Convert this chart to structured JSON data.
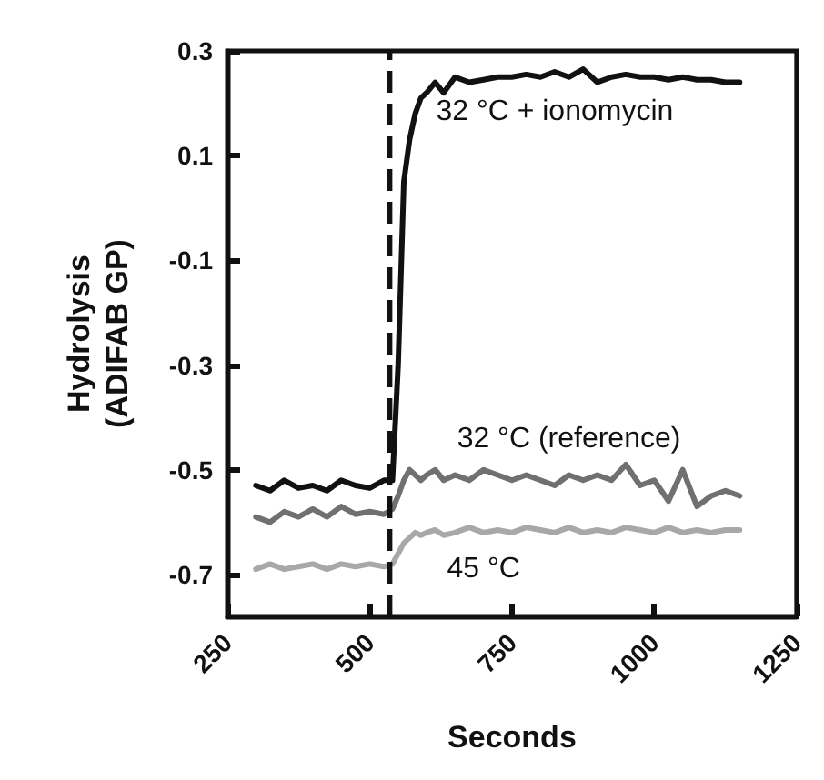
{
  "chart_data": {
    "type": "line",
    "xlabel": "Seconds",
    "ylabel": "Hydrolysis\n(ADIFAB GP)",
    "xlim": [
      250,
      1250
    ],
    "xticks": [
      250,
      500,
      750,
      1000,
      1250
    ],
    "ylim": [
      -0.78,
      0.3
    ],
    "yticks": [
      0.3,
      0.1,
      -0.1,
      -0.3,
      -0.5,
      -0.7
    ],
    "grid": false,
    "marker": "none",
    "line_style": "solid",
    "x": [
      300,
      325,
      350,
      375,
      400,
      425,
      450,
      475,
      500,
      525,
      540,
      550,
      560,
      570,
      580,
      590,
      600,
      615,
      630,
      650,
      675,
      700,
      725,
      750,
      775,
      800,
      825,
      850,
      875,
      900,
      925,
      950,
      975,
      1000,
      1025,
      1050,
      1075,
      1100,
      1125,
      1150
    ],
    "series": [
      {
        "name": "32 °C + ionomycin",
        "color": "#111111",
        "values": [
          -0.53,
          -0.54,
          -0.52,
          -0.535,
          -0.53,
          -0.54,
          -0.52,
          -0.53,
          -0.535,
          -0.52,
          -0.52,
          -0.3,
          0.05,
          0.13,
          0.18,
          0.21,
          0.22,
          0.24,
          0.22,
          0.25,
          0.24,
          0.245,
          0.25,
          0.25,
          0.255,
          0.25,
          0.26,
          0.25,
          0.265,
          0.24,
          0.25,
          0.255,
          0.25,
          0.25,
          0.245,
          0.25,
          0.245,
          0.245,
          0.24,
          0.24
        ]
      },
      {
        "name": "32 °C (reference)",
        "color": "#707070",
        "values": [
          -0.59,
          -0.6,
          -0.58,
          -0.59,
          -0.575,
          -0.59,
          -0.57,
          -0.585,
          -0.58,
          -0.585,
          -0.575,
          -0.55,
          -0.52,
          -0.5,
          -0.51,
          -0.52,
          -0.51,
          -0.5,
          -0.52,
          -0.51,
          -0.52,
          -0.5,
          -0.51,
          -0.52,
          -0.51,
          -0.52,
          -0.53,
          -0.51,
          -0.52,
          -0.51,
          -0.52,
          -0.49,
          -0.53,
          -0.52,
          -0.56,
          -0.5,
          -0.57,
          -0.55,
          -0.54,
          -0.55
        ]
      },
      {
        "name": "45 °C",
        "color": "#a8a8a8",
        "values": [
          -0.69,
          -0.68,
          -0.69,
          -0.685,
          -0.68,
          -0.69,
          -0.68,
          -0.685,
          -0.68,
          -0.685,
          -0.68,
          -0.66,
          -0.64,
          -0.63,
          -0.62,
          -0.625,
          -0.62,
          -0.615,
          -0.625,
          -0.62,
          -0.61,
          -0.62,
          -0.615,
          -0.62,
          -0.61,
          -0.615,
          -0.62,
          -0.61,
          -0.62,
          -0.615,
          -0.62,
          -0.61,
          -0.615,
          -0.62,
          -0.61,
          -0.62,
          -0.615,
          -0.62,
          -0.615,
          -0.615
        ]
      }
    ],
    "ref_lines": [
      {
        "axis": "x",
        "value": 535,
        "color": "#111111",
        "line_style": "dashed"
      }
    ]
  }
}
